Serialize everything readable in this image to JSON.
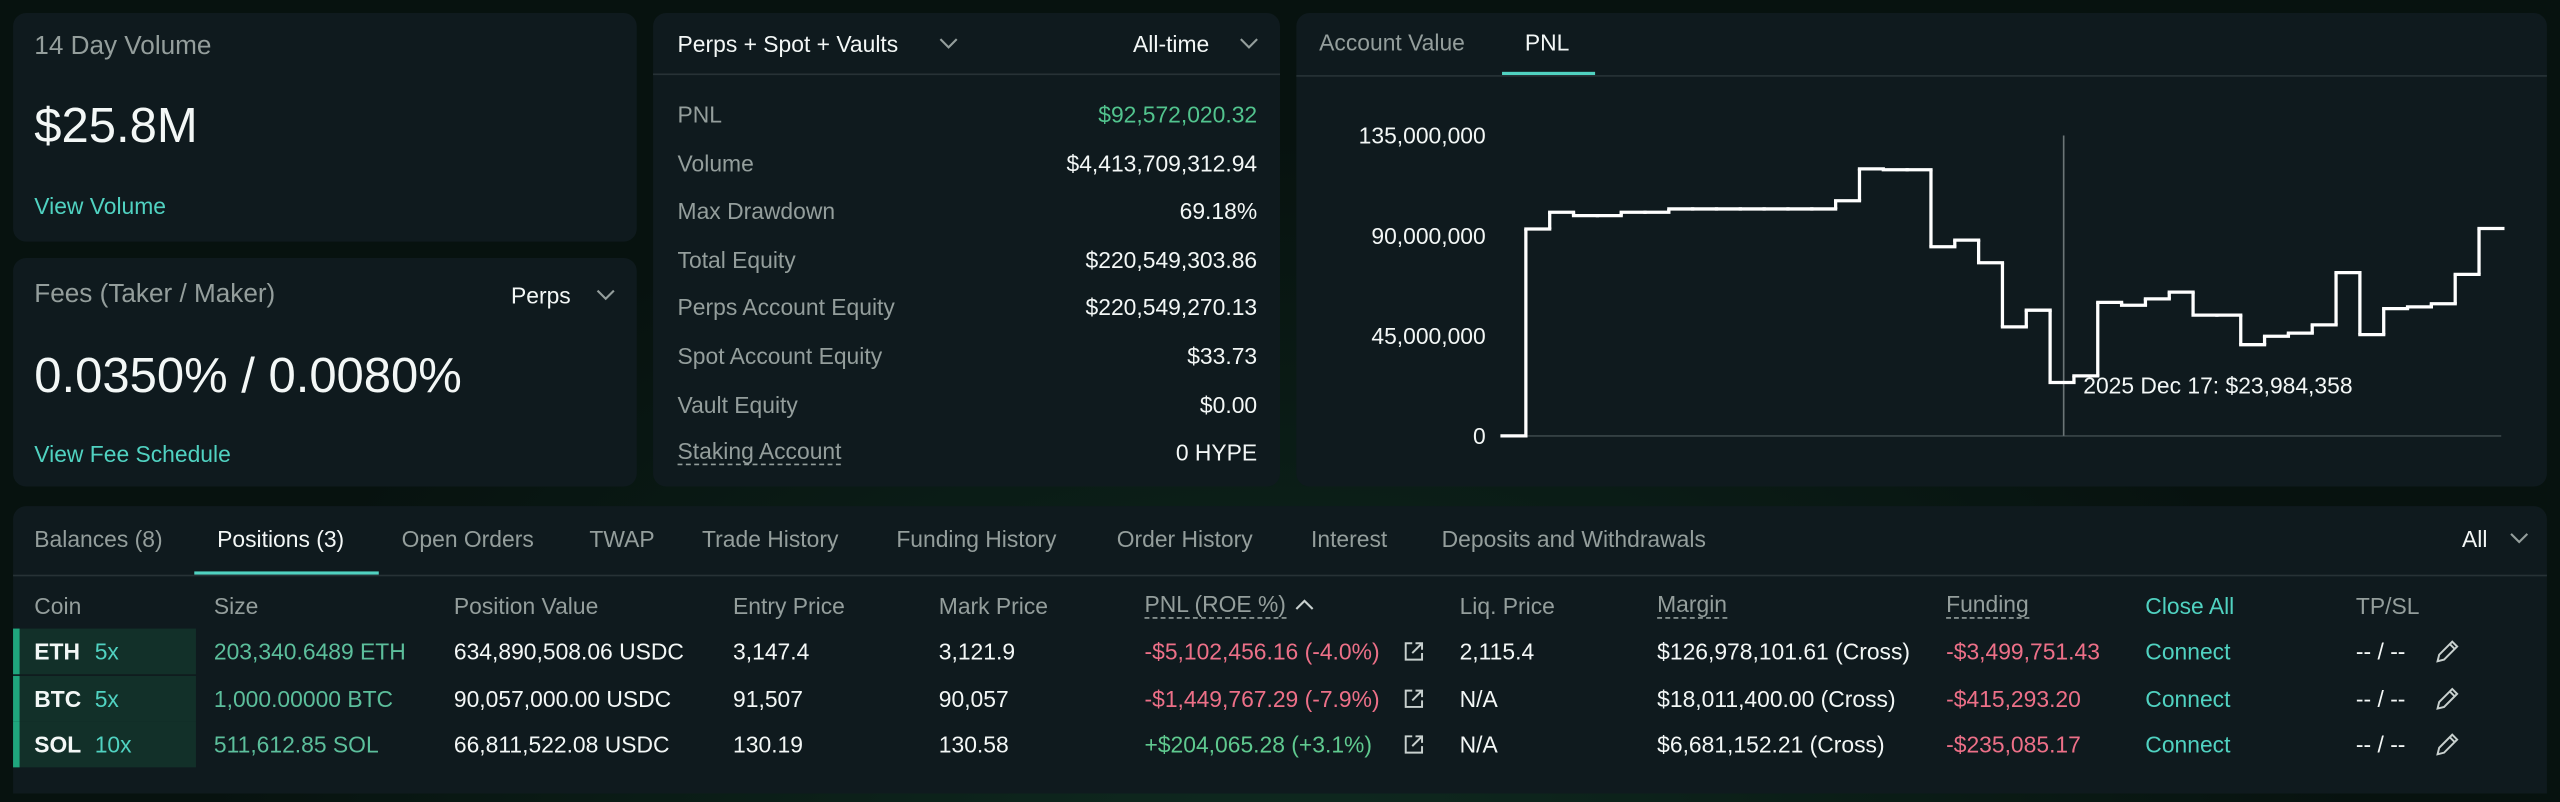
{
  "volume_card": {
    "title": "14 Day Volume",
    "value": "$25.8M",
    "link": "View Volume"
  },
  "fees_card": {
    "title": "Fees (Taker / Maker)",
    "selector": "Perps",
    "value": "0.0350% / 0.0080%",
    "link": "View Fee Schedule"
  },
  "summary": {
    "scope": "Perps + Spot + Vaults",
    "period": "All-time",
    "rows": [
      [
        "PNL",
        "$92,572,020.32"
      ],
      [
        "Volume",
        "$4,413,709,312.94"
      ],
      [
        "Max Drawdown",
        "69.18%"
      ],
      [
        "Total Equity",
        "$220,549,303.86"
      ],
      [
        "Perps Account Equity",
        "$220,549,270.13"
      ],
      [
        "Spot Account Equity",
        "$33.73"
      ],
      [
        "Vault Equity",
        "$0.00"
      ],
      [
        "Staking Account",
        "0 HYPE"
      ]
    ]
  },
  "chart_tabs": [
    "Account Value",
    "PNL"
  ],
  "chart_data": {
    "type": "line",
    "step": true,
    "color": "#ffffff",
    "values": [
      0,
      93000000,
      100500000,
      99000000,
      99000000,
      100500000,
      100500000,
      102000000,
      102000000,
      102000000,
      102000000,
      102000000,
      102000000,
      102000000,
      105700000,
      120000000,
      119600000,
      119600000,
      85000000,
      88000000,
      77800000,
      49000000,
      56500000,
      23984358,
      27000000,
      60000000,
      58700000,
      61600000,
      64600000,
      54300000,
      54300000,
      41000000,
      44800000,
      46200000,
      49900000,
      73400000,
      45500000,
      57200000,
      58000000,
      59400000,
      72600000,
      93200000
    ],
    "ylim": [
      0,
      135000000
    ],
    "yticks": [
      {
        "value": 0,
        "label": "0"
      },
      {
        "value": 45000000,
        "label": "45,000,000"
      },
      {
        "value": 90000000,
        "label": "90,000,000"
      },
      {
        "value": 135000000,
        "label": "135,000,000"
      }
    ],
    "annotation": "2025 Dec 17: $23,984,358"
  },
  "tabs": [
    "Balances (8)",
    "Positions (3)",
    "Open Orders",
    "TWAP",
    "Trade History",
    "Funding History",
    "Order History",
    "Interest",
    "Deposits and Withdrawals"
  ],
  "filter": "All",
  "table": {
    "columns": [
      "Coin",
      "Size",
      "Position Value",
      "Entry Price",
      "Mark Price",
      "PNL (ROE %)",
      "Liq. Price",
      "Margin",
      "Funding",
      "Close All",
      "TP/SL"
    ],
    "rows": [
      {
        "coin": "ETH",
        "leverage": "5x",
        "size": "203,340.6489 ETH",
        "position_value": "634,890,508.06 USDC",
        "entry_price": "3,147.4",
        "mark_price": "3,121.9",
        "pnl": "-$5,102,456.16 (-4.0%)",
        "liq_price": "2,115.4",
        "margin": "$126,978,101.61 (Cross)",
        "funding": "-$3,499,751.43",
        "close": "Connect",
        "tpsl": "-- / --"
      },
      {
        "coin": "BTC",
        "leverage": "5x",
        "size": "1,000.00000 BTC",
        "position_value": "90,057,000.00 USDC",
        "entry_price": "91,507",
        "mark_price": "90,057",
        "pnl": "-$1,449,767.29 (-7.9%)",
        "liq_price": "N/A",
        "margin": "$18,011,400.00 (Cross)",
        "funding": "-$415,293.20",
        "close": "Connect",
        "tpsl": "-- / --"
      },
      {
        "coin": "SOL",
        "leverage": "10x",
        "size": "511,612.85 SOL",
        "position_value": "66,811,522.08 USDC",
        "entry_price": "130.19",
        "mark_price": "130.58",
        "pnl": "+$204,065.28 (+3.1%)",
        "liq_price": "N/A",
        "margin": "$6,681,152.21 (Cross)",
        "funding": "-$235,085.17",
        "close": "Connect",
        "tpsl": "-- / --"
      }
    ]
  }
}
